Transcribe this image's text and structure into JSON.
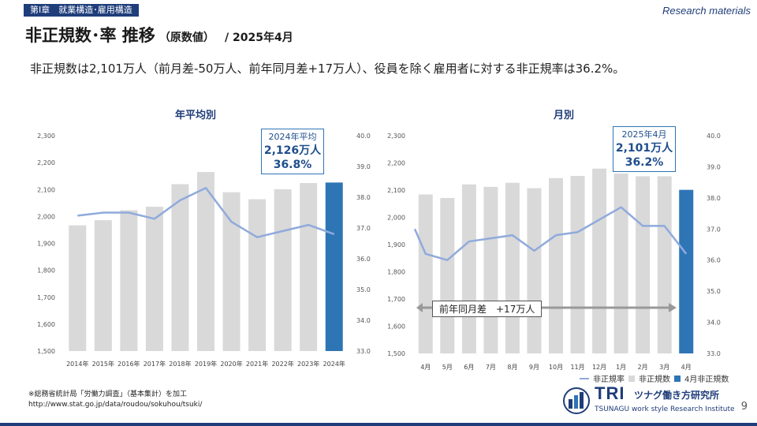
{
  "header": {
    "chapter": "第Ⅰ章　就業構造･雇用構造",
    "research_label": "Research materials",
    "title_main": "非正規数･率 推移",
    "title_sub": "（原数値）",
    "title_date": "/ 2025年4月"
  },
  "headline": "非正規数は2,101万人（前月差-50万人、前年同月差+17万人）、役員を除く雇用者に対する非正規率は36.2%。",
  "colors": {
    "bar_gray": "#d9d9d9",
    "bar_highlight": "#2e75b6",
    "line": "#8faadc",
    "title_blue": "#1f3d7a",
    "arrow_gray": "#999999"
  },
  "chart_data": [
    {
      "type": "bar",
      "title": "年平均別",
      "categories": [
        "2014年",
        "2015年",
        "2016年",
        "2017年",
        "2018年",
        "2019年",
        "2020年",
        "2021年",
        "2022年",
        "2023年",
        "2024年"
      ],
      "series": [
        {
          "name": "非正規数",
          "axis": "left",
          "type": "bar",
          "values": [
            1967,
            1986,
            2023,
            2036,
            2120,
            2165,
            2090,
            2064,
            2101,
            2124,
            2126
          ]
        },
        {
          "name": "非正規率",
          "axis": "right",
          "type": "line",
          "values": [
            37.4,
            37.5,
            37.5,
            37.3,
            37.9,
            38.3,
            37.2,
            36.7,
            36.9,
            37.1,
            36.8
          ]
        }
      ],
      "highlight_index": 10,
      "y_left": {
        "lim": [
          1500,
          2300
        ],
        "ticks": [
          "1,500",
          "1,600",
          "1,700",
          "1,800",
          "1,900",
          "2,000",
          "2,100",
          "2,200",
          "2,300"
        ]
      },
      "y_right": {
        "lim": [
          33.0,
          40.0
        ],
        "ticks": [
          "33.0",
          "34.0",
          "35.0",
          "36.0",
          "37.0",
          "38.0",
          "39.0",
          "40.0"
        ]
      },
      "callout": {
        "line1": "2024年平均",
        "line2": "2,126万人",
        "line3": "36.8%"
      }
    },
    {
      "type": "bar",
      "title": "月別",
      "categories": [
        "4月",
        "5月",
        "6月",
        "7月",
        "8月",
        "9月",
        "10月",
        "11月",
        "12月",
        "1月",
        "2月",
        "3月",
        "4月"
      ],
      "series": [
        {
          "name": "非正規数",
          "axis": "left",
          "type": "bar",
          "values": [
            2084,
            2071,
            2121,
            2112,
            2127,
            2107,
            2144,
            2152,
            2179,
            2161,
            2151,
            2151,
            2101
          ]
        },
        {
          "name": "非正規率",
          "axis": "right",
          "type": "line",
          "values": [
            36.2,
            36.0,
            36.6,
            36.7,
            36.8,
            36.3,
            36.8,
            36.9,
            37.3,
            37.7,
            37.1,
            37.1,
            36.2
          ]
        },
        {
          "name": "4月非正規数",
          "axis": "left",
          "type": "bar"
        }
      ],
      "highlight_index": 12,
      "y_left": {
        "lim": [
          1500,
          2300
        ],
        "ticks": [
          "1,500",
          "1,600",
          "1,700",
          "1,800",
          "1,900",
          "2,000",
          "2,100",
          "2,200",
          "2,300"
        ]
      },
      "y_right": {
        "lim": [
          33.0,
          40.0
        ],
        "ticks": [
          "33.0",
          "34.0",
          "35.0",
          "36.0",
          "37.0",
          "38.0",
          "39.0",
          "40.0"
        ]
      },
      "callout": {
        "line1": "2025年4月",
        "line2": "2,101万人",
        "line3": "36.2%"
      },
      "annotation": "前年同月差　+17万人",
      "legend": [
        "非正規率",
        "非正規数",
        "4月非正規数"
      ]
    }
  ],
  "footer": {
    "source_line1": "※総務省統計局「労働力調査」（基本集計）を加工",
    "source_line2": "http://www.stat.go.jp/data/roudou/sokuhou/tsuki/",
    "logo_main": "TRI",
    "logo_jp": "ツナグ働き方研究所",
    "logo_en": "TSUNAGU work style Research Institute",
    "page_number": "9"
  }
}
